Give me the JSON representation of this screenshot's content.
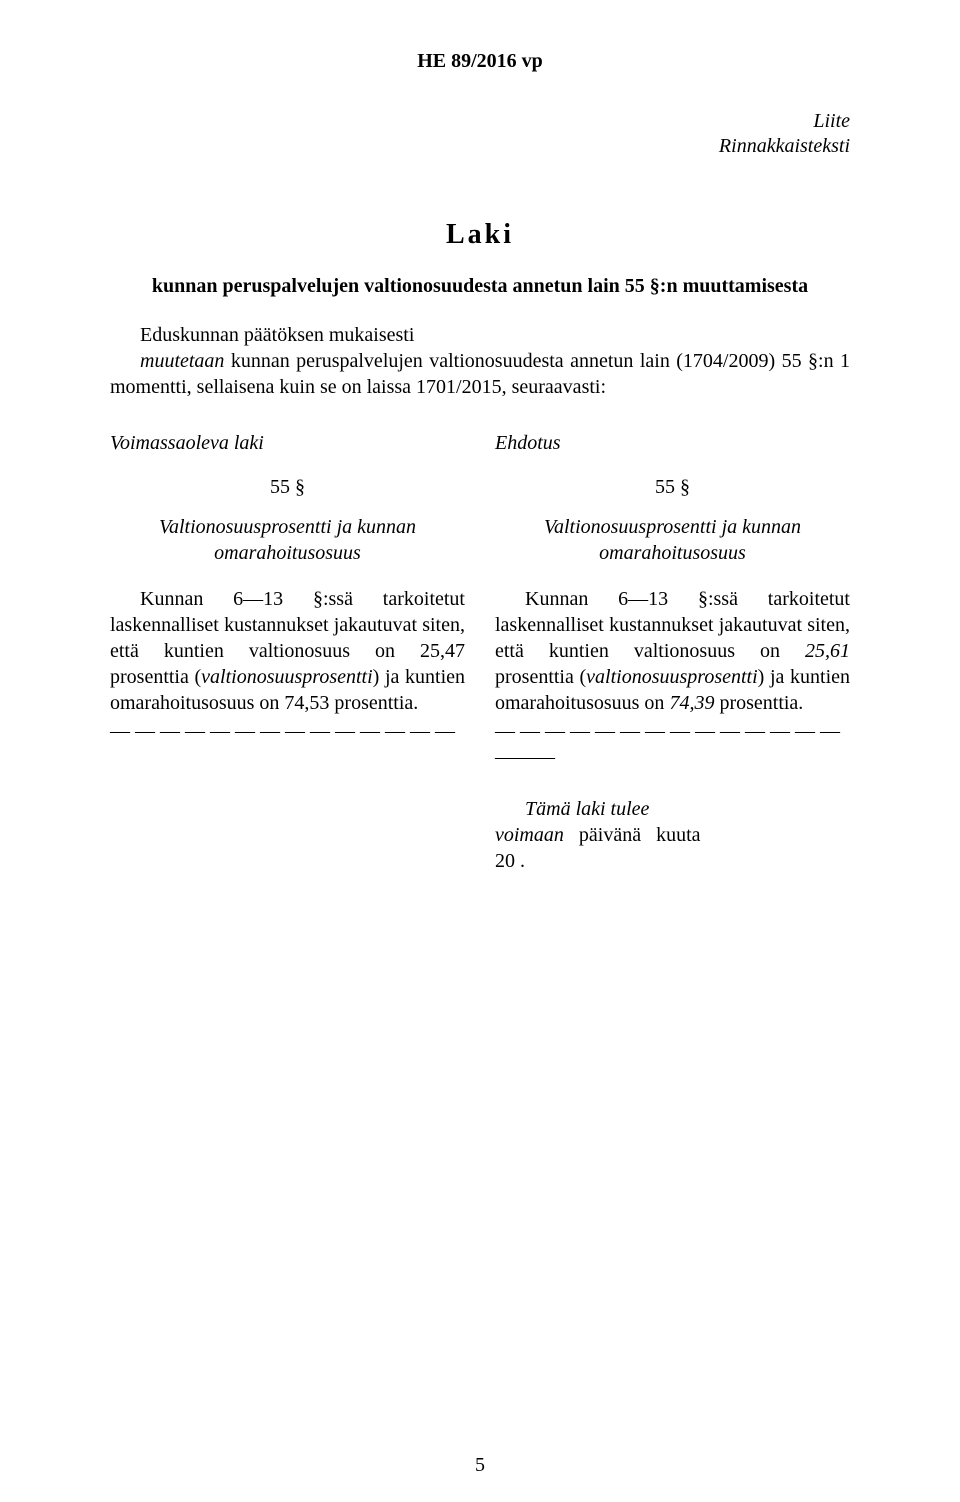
{
  "doc_id": "HE 89/2016 vp",
  "liite": "Liite",
  "rinnakkaisteksti": "Rinnakkaisteksti",
  "laki": "Laki",
  "law_subtitle": "kunnan peruspalvelujen valtionosuudesta annetun lain 55 §:n muuttamisesta",
  "preamble_plain1": "Eduskunnan päätöksen mukaisesti",
  "preamble_italic": "muutetaan",
  "preamble_plain2": " kunnan peruspalvelujen valtionosuudesta annetun lain (1704/2009) 55 §:n 1 momentti, sellaisena kuin se on laissa 1701/2015, seuraavasti:",
  "left": {
    "header": "Voimassaoleva laki",
    "section_number": "55 §",
    "section_title": "Valtionosuusprosentti ja kunnan omarahoitusosuus",
    "body_pre": "Kunnan 6—13 §:ssä tarkoitetut laskennalliset kustannukset jakautuvat siten, että kuntien valtionosuus on 25,47 prosenttia (",
    "body_italic": "valtionosuusprosentti",
    "body_post": ") ja kuntien omarahoitusosuus on 74,53 prosenttia.",
    "dashes": "— — — — — — — — — — — — — —"
  },
  "right": {
    "header": "Ehdotus",
    "section_number": "55 §",
    "section_title": "Valtionosuusprosentti ja kunnan omarahoitusosuus",
    "body_pre": "Kunnan 6—13 §:ssä tarkoitetut laskennalliset kustannukset jakautuvat siten, että kuntien valtionosuus on ",
    "body_italic1": "25,61",
    "body_mid": " prosenttia (",
    "body_italic2": "valtionosuusprosentti",
    "body_mid2": ") ja kuntien omarahoitusosuus on ",
    "body_italic3": "74,39",
    "body_post": " prosenttia.",
    "dashes": "— — — — — — — — — — — — — —",
    "short_dashes": "———",
    "footer_line1_a": "Tämä laki tulee voimaan",
    "footer_line1_b": "päivänä",
    "footer_line1_c": "kuuta",
    "footer_line2": "20   ."
  },
  "page_number": "5"
}
